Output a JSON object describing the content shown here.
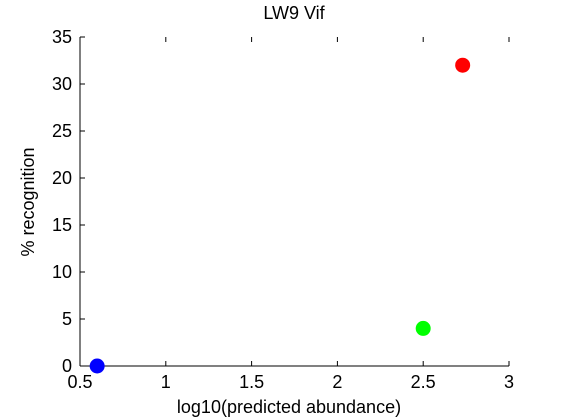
{
  "chart_data": {
    "type": "scatter",
    "title": "LW9 Vif",
    "xlabel": "log10(predicted abundance)",
    "ylabel": "% recognition",
    "xlim": [
      0.5,
      3
    ],
    "ylim": [
      0,
      35
    ],
    "xticks": [
      "0.5",
      "1",
      "1.5",
      "2",
      "2.5",
      "3"
    ],
    "yticks": [
      "0",
      "5",
      "10",
      "15",
      "20",
      "25",
      "30",
      "35"
    ],
    "grid": false,
    "points": [
      {
        "x": 0.6,
        "y": 0,
        "color": "#0000ff"
      },
      {
        "x": 2.5,
        "y": 4,
        "color": "#00ff00"
      },
      {
        "x": 2.73,
        "y": 32,
        "color": "#ff0000"
      }
    ]
  }
}
